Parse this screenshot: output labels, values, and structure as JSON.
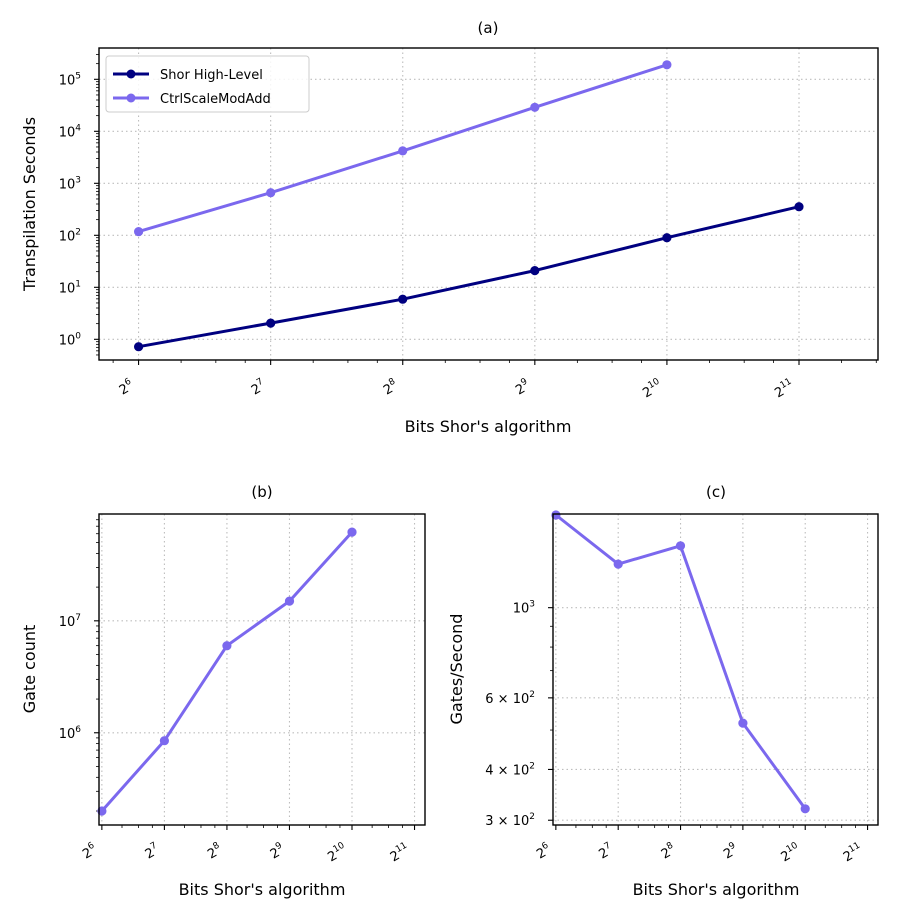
{
  "colors": {
    "navy": "#000080",
    "purple": "#7b68ee",
    "grid": "#bdbdbd",
    "axis": "#000000"
  },
  "chart_data": [
    {
      "id": "a",
      "type": "line",
      "title": "(a)",
      "xlabel": "Bits Shor's algorithm",
      "ylabel": "Transpilation Seconds",
      "xscale": "log2",
      "yscale": "log10",
      "xlim": [
        52,
        3100
      ],
      "ylim": [
        0.4,
        400000
      ],
      "grid": true,
      "legend": "top-left",
      "xticks": [
        64,
        128,
        256,
        512,
        1024,
        2048
      ],
      "xtick_labels": [
        [
          "2",
          "6"
        ],
        [
          "2",
          "7"
        ],
        [
          "2",
          "8"
        ],
        [
          "2",
          "9"
        ],
        [
          "2",
          "10"
        ],
        [
          "2",
          "11"
        ]
      ],
      "yticks": [
        1,
        10,
        100,
        1000,
        10000,
        100000
      ],
      "ytick_labels": [
        [
          "10",
          "0"
        ],
        [
          "10",
          "1"
        ],
        [
          "10",
          "2"
        ],
        [
          "10",
          "3"
        ],
        [
          "10",
          "4"
        ],
        [
          "10",
          "5"
        ]
      ],
      "series": [
        {
          "name": "Shor High-Level",
          "color": "#000080",
          "x": [
            64,
            128,
            256,
            512,
            1024,
            2048
          ],
          "y": [
            0.72,
            2.05,
            5.9,
            21,
            90,
            355
          ]
        },
        {
          "name": "CtrlScaleModAdd",
          "color": "#7b68ee",
          "x": [
            64,
            128,
            256,
            512,
            1024
          ],
          "y": [
            118,
            660,
            4200,
            29000,
            190000
          ]
        }
      ]
    },
    {
      "id": "b",
      "type": "line",
      "title": "(b)",
      "xlabel": "Bits Shor's algorithm",
      "ylabel": "Gate count",
      "xscale": "log2",
      "yscale": "log10",
      "xlim": [
        62,
        2300
      ],
      "ylim": [
        150000,
        90000000
      ],
      "grid": true,
      "xticks": [
        64,
        128,
        256,
        512,
        1024,
        2048
      ],
      "xtick_labels": [
        [
          "2",
          "6"
        ],
        [
          "2",
          "7"
        ],
        [
          "2",
          "8"
        ],
        [
          "2",
          "9"
        ],
        [
          "2",
          "10"
        ],
        [
          "2",
          "11"
        ]
      ],
      "yticks": [
        1000000,
        10000000
      ],
      "ytick_labels": [
        [
          "10",
          "6"
        ],
        [
          "10",
          "7"
        ]
      ],
      "series": [
        {
          "name": "CtrlScaleModAdd",
          "color": "#7b68ee",
          "x": [
            64,
            128,
            256,
            512,
            1024
          ],
          "y": [
            200000,
            850000,
            6000000,
            15000000,
            62000000
          ]
        }
      ]
    },
    {
      "id": "c",
      "type": "line",
      "title": "(c)",
      "xlabel": "Bits Shor's algorithm",
      "ylabel": "Gates/Second",
      "xscale": "log2",
      "yscale": "log10",
      "xlim": [
        62,
        2300
      ],
      "ylim": [
        292,
        1700
      ],
      "grid": true,
      "xticks": [
        64,
        128,
        256,
        512,
        1024,
        2048
      ],
      "xtick_labels": [
        [
          "2",
          "6"
        ],
        [
          "2",
          "7"
        ],
        [
          "2",
          "8"
        ],
        [
          "2",
          "9"
        ],
        [
          "2",
          "10"
        ],
        [
          "2",
          "11"
        ]
      ],
      "yticks": [
        300,
        400,
        600,
        1000
      ],
      "ytick_labels": [
        [
          "3 × 10",
          "2"
        ],
        [
          "4 × 10",
          "2"
        ],
        [
          "6 × 10",
          "2"
        ],
        [
          "10",
          "3"
        ]
      ],
      "series": [
        {
          "name": "CtrlScaleModAdd",
          "color": "#7b68ee",
          "x": [
            64,
            128,
            256,
            512,
            1024
          ],
          "y": [
            1690,
            1280,
            1420,
            520,
            320
          ]
        }
      ]
    }
  ]
}
